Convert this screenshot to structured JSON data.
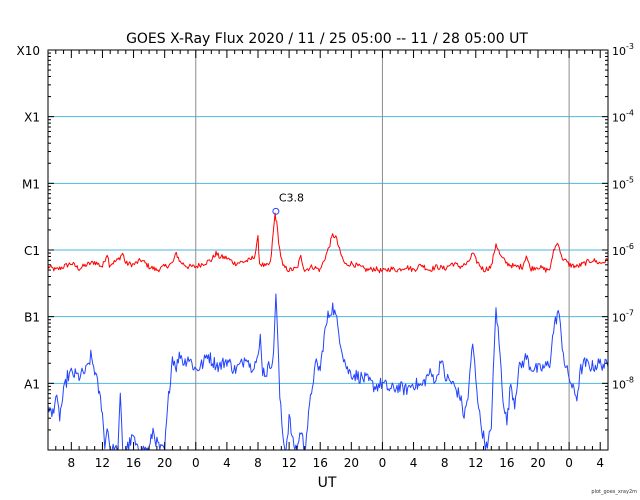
{
  "chart_data": {
    "type": "line",
    "title": "GOES X-Ray Flux   2020 / 11 / 25   05:00 -- 11 / 28   05:00   UT",
    "xlabel": "UT",
    "xlim_hours": [
      0,
      72
    ],
    "x_tick_labels": [
      {
        "t": 3,
        "label": "8"
      },
      {
        "t": 7,
        "label": "12"
      },
      {
        "t": 11,
        "label": "16"
      },
      {
        "t": 15,
        "label": "20"
      },
      {
        "t": 19,
        "label": "0"
      },
      {
        "t": 23,
        "label": "4"
      },
      {
        "t": 27,
        "label": "8"
      },
      {
        "t": 31,
        "label": "12"
      },
      {
        "t": 35,
        "label": "16"
      },
      {
        "t": 39,
        "label": "20"
      },
      {
        "t": 43,
        "label": "0"
      },
      {
        "t": 47,
        "label": "4"
      },
      {
        "t": 51,
        "label": "8"
      },
      {
        "t": 55,
        "label": "12"
      },
      {
        "t": 59,
        "label": "16"
      },
      {
        "t": 63,
        "label": "20"
      },
      {
        "t": 67,
        "label": "0"
      },
      {
        "t": 71,
        "label": "4"
      }
    ],
    "day_boundaries_hours": [
      19,
      43,
      67
    ],
    "ylim_log10": [
      -9,
      -3
    ],
    "y_scale": "log",
    "left_class_labels": [
      {
        "log": -3,
        "label": "X10"
      },
      {
        "log": -4,
        "label": "X1"
      },
      {
        "log": -5,
        "label": "M1"
      },
      {
        "log": -6,
        "label": "C1"
      },
      {
        "log": -7,
        "label": "B1"
      },
      {
        "log": -8,
        "label": "A1"
      }
    ],
    "right_power_labels": [
      {
        "log": -3,
        "base": "10",
        "exp": "-3"
      },
      {
        "log": -4,
        "base": "10",
        "exp": "-4"
      },
      {
        "log": -5,
        "base": "10",
        "exp": "-5"
      },
      {
        "log": -6,
        "base": "10",
        "exp": "-6"
      },
      {
        "log": -7,
        "base": "10",
        "exp": "-7"
      },
      {
        "log": -8,
        "base": "10",
        "exp": "-8"
      }
    ],
    "flare_annotation": {
      "label": "C3.8",
      "t": 29.3,
      "log": -5.42
    },
    "series": [
      {
        "color": "#ff0000",
        "points": [
          [
            0,
            -6.25
          ],
          [
            1,
            -6.3
          ],
          [
            2,
            -6.25
          ],
          [
            3,
            -6.2
          ],
          [
            4,
            -6.28
          ],
          [
            5,
            -6.22
          ],
          [
            6,
            -6.18
          ],
          [
            7,
            -6.25
          ],
          [
            7.6,
            -6.05
          ],
          [
            7.9,
            -6.22
          ],
          [
            9,
            -6.15
          ],
          [
            9.6,
            -6.05
          ],
          [
            10,
            -6.2
          ],
          [
            11,
            -6.22
          ],
          [
            12,
            -6.15
          ],
          [
            13,
            -6.25
          ],
          [
            14,
            -6.3
          ],
          [
            15,
            -6.25
          ],
          [
            16,
            -6.2
          ],
          [
            16.5,
            -6.05
          ],
          [
            17,
            -6.18
          ],
          [
            18,
            -6.25
          ],
          [
            19,
            -6.25
          ],
          [
            20,
            -6.2
          ],
          [
            21,
            -6.15
          ],
          [
            21.6,
            -6.05
          ],
          [
            22,
            -6.1
          ],
          [
            23,
            -6.12
          ],
          [
            24,
            -6.2
          ],
          [
            25,
            -6.18
          ],
          [
            26,
            -6.15
          ],
          [
            26.6,
            -6.08
          ],
          [
            27,
            -5.82
          ],
          [
            27.2,
            -6.2
          ],
          [
            28,
            -6.25
          ],
          [
            28.6,
            -6.2
          ],
          [
            29.2,
            -5.45
          ],
          [
            29.4,
            -5.6
          ],
          [
            29.8,
            -6.0
          ],
          [
            30.2,
            -6.25
          ],
          [
            31,
            -6.3
          ],
          [
            32,
            -6.28
          ],
          [
            32.5,
            -6.1
          ],
          [
            33,
            -6.3
          ],
          [
            34,
            -6.25
          ],
          [
            35,
            -6.3
          ],
          [
            36,
            -6.0
          ],
          [
            36.6,
            -5.78
          ],
          [
            37,
            -5.8
          ],
          [
            37.6,
            -6.05
          ],
          [
            38.2,
            -6.22
          ],
          [
            39,
            -6.2
          ],
          [
            40,
            -6.25
          ],
          [
            41,
            -6.3
          ],
          [
            42,
            -6.28
          ],
          [
            43,
            -6.32
          ],
          [
            44,
            -6.28
          ],
          [
            45,
            -6.3
          ],
          [
            46,
            -6.25
          ],
          [
            47,
            -6.3
          ],
          [
            48,
            -6.22
          ],
          [
            49,
            -6.3
          ],
          [
            50,
            -6.25
          ],
          [
            51,
            -6.28
          ],
          [
            52,
            -6.2
          ],
          [
            53,
            -6.25
          ],
          [
            54,
            -6.2
          ],
          [
            54.6,
            -6.05
          ],
          [
            55,
            -6.15
          ],
          [
            56,
            -6.3
          ],
          [
            57,
            -6.25
          ],
          [
            57.6,
            -5.9
          ],
          [
            58.2,
            -6.1
          ],
          [
            59,
            -6.2
          ],
          [
            60,
            -6.25
          ],
          [
            61,
            -6.25
          ],
          [
            61.5,
            -6.08
          ],
          [
            62,
            -6.28
          ],
          [
            63,
            -6.25
          ],
          [
            64,
            -6.3
          ],
          [
            64.6,
            -6.28
          ],
          [
            65,
            -6.0
          ],
          [
            65.6,
            -5.88
          ],
          [
            66,
            -6.1
          ],
          [
            67,
            -6.22
          ],
          [
            68,
            -6.25
          ],
          [
            69,
            -6.2
          ],
          [
            70,
            -6.15
          ],
          [
            71,
            -6.2
          ],
          [
            72,
            -6.15
          ]
        ]
      },
      {
        "color": "#2244ff",
        "points": [
          [
            0,
            -8.3
          ],
          [
            0.5,
            -8.5
          ],
          [
            1,
            -8.2
          ],
          [
            1.5,
            -8.5
          ],
          [
            2,
            -8.15
          ],
          [
            2.5,
            -7.9
          ],
          [
            3,
            -7.85
          ],
          [
            4,
            -7.9
          ],
          [
            5,
            -7.8
          ],
          [
            5.5,
            -7.6
          ],
          [
            6,
            -7.8
          ],
          [
            6.5,
            -8.1
          ],
          [
            7,
            -8.4
          ],
          [
            7.3,
            -9.0
          ],
          [
            7.6,
            -8.6
          ],
          [
            8,
            -9.0
          ],
          [
            9,
            -9.0
          ],
          [
            9.3,
            -8.2
          ],
          [
            9.6,
            -9.0
          ],
          [
            10,
            -9.0
          ],
          [
            11,
            -8.8
          ],
          [
            11.4,
            -9.0
          ],
          [
            12,
            -9.0
          ],
          [
            13,
            -9.0
          ],
          [
            13.5,
            -8.7
          ],
          [
            14,
            -8.9
          ],
          [
            14.5,
            -9.0
          ],
          [
            15,
            -9.0
          ],
          [
            15.5,
            -8.2
          ],
          [
            16,
            -7.6
          ],
          [
            16.5,
            -7.75
          ],
          [
            17,
            -7.55
          ],
          [
            17.5,
            -7.7
          ],
          [
            18,
            -7.6
          ],
          [
            19,
            -7.8
          ],
          [
            20,
            -7.7
          ],
          [
            20.5,
            -7.55
          ],
          [
            21,
            -7.65
          ],
          [
            22,
            -7.75
          ],
          [
            23,
            -7.65
          ],
          [
            24,
            -7.8
          ],
          [
            25,
            -7.7
          ],
          [
            25.5,
            -7.55
          ],
          [
            26,
            -7.75
          ],
          [
            27,
            -7.65
          ],
          [
            27.3,
            -7.3
          ],
          [
            27.6,
            -7.8
          ],
          [
            28,
            -7.85
          ],
          [
            29.0,
            -7.6
          ],
          [
            29.3,
            -6.6
          ],
          [
            29.5,
            -7.2
          ],
          [
            29.8,
            -8.2
          ],
          [
            30.2,
            -8.8
          ],
          [
            30.6,
            -9.0
          ],
          [
            31,
            -8.5
          ],
          [
            31.5,
            -8.9
          ],
          [
            32,
            -9.0
          ],
          [
            32.5,
            -8.7
          ],
          [
            33,
            -9.0
          ],
          [
            33.5,
            -8.5
          ],
          [
            34,
            -8.0
          ],
          [
            34.5,
            -7.7
          ],
          [
            35,
            -7.8
          ],
          [
            35.5,
            -7.3
          ],
          [
            36,
            -7.0
          ],
          [
            36.6,
            -6.85
          ],
          [
            37,
            -7.0
          ],
          [
            37.5,
            -7.3
          ],
          [
            38,
            -7.6
          ],
          [
            38.5,
            -7.8
          ],
          [
            39,
            -7.85
          ],
          [
            40,
            -7.9
          ],
          [
            41,
            -7.95
          ],
          [
            42,
            -8.05
          ],
          [
            43,
            -8.0
          ],
          [
            44,
            -8.1
          ],
          [
            45,
            -8.05
          ],
          [
            46,
            -8.1
          ],
          [
            47,
            -8.0
          ],
          [
            48,
            -8.05
          ],
          [
            49,
            -7.85
          ],
          [
            50,
            -7.95
          ],
          [
            50.5,
            -7.6
          ],
          [
            51,
            -7.9
          ],
          [
            52,
            -8.0
          ],
          [
            53,
            -8.2
          ],
          [
            53.5,
            -8.5
          ],
          [
            54,
            -8.2
          ],
          [
            54.6,
            -7.4
          ],
          [
            55,
            -7.9
          ],
          [
            55.5,
            -8.5
          ],
          [
            56,
            -8.8
          ],
          [
            56.5,
            -9.0
          ],
          [
            57,
            -8.6
          ],
          [
            57.6,
            -6.85
          ],
          [
            58,
            -7.4
          ],
          [
            58.5,
            -8.2
          ],
          [
            59,
            -8.6
          ],
          [
            59.5,
            -8.0
          ],
          [
            60,
            -8.3
          ],
          [
            60.5,
            -7.8
          ],
          [
            61,
            -7.7
          ],
          [
            61.5,
            -7.6
          ],
          [
            62,
            -7.75
          ],
          [
            63,
            -7.8
          ],
          [
            64,
            -7.75
          ],
          [
            64.5,
            -7.7
          ],
          [
            65,
            -7.2
          ],
          [
            65.6,
            -6.9
          ],
          [
            66,
            -7.3
          ],
          [
            66.5,
            -7.75
          ],
          [
            67,
            -7.9
          ],
          [
            67.5,
            -8.1
          ],
          [
            68,
            -8.2
          ],
          [
            68.5,
            -7.8
          ],
          [
            69,
            -7.7
          ],
          [
            70,
            -7.75
          ],
          [
            71,
            -7.7
          ],
          [
            72,
            -7.75
          ]
        ]
      }
    ]
  },
  "credit_text": "plot_goes_xray2m"
}
